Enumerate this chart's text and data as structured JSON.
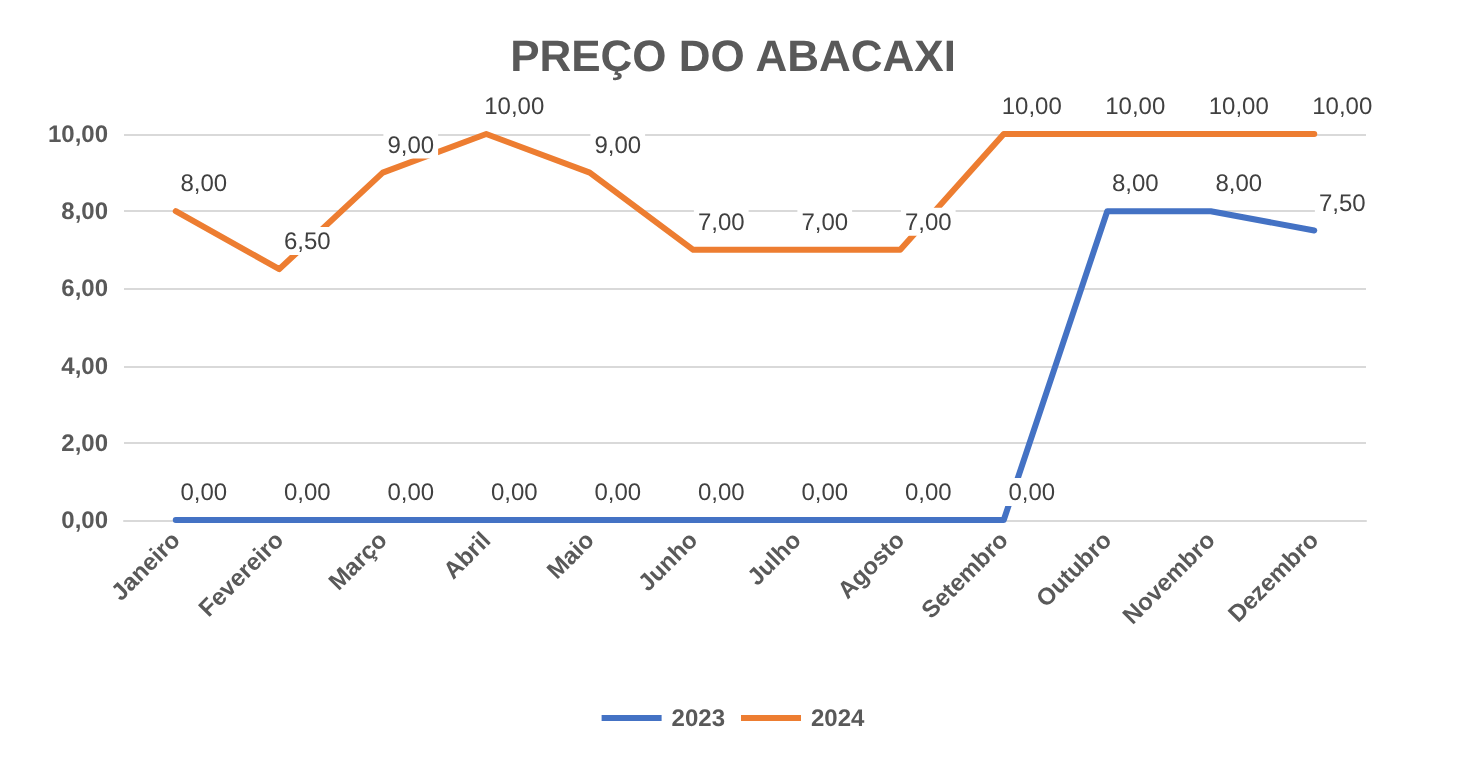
{
  "chart_data": {
    "type": "line",
    "title": "PREÇO DO ABACAXI",
    "categories": [
      "Janeiro",
      "Fevereiro",
      "Março",
      "Abril",
      "Maio",
      "Junho",
      "Julho",
      "Agosto",
      "Setembro",
      "Outubro",
      "Novembro",
      "Dezembro"
    ],
    "series": [
      {
        "name": "2023",
        "color": "#4472c4",
        "values": [
          0,
          0,
          0,
          0,
          0,
          0,
          0,
          0,
          0,
          8,
          8,
          7.5
        ],
        "value_labels": [
          "0,00",
          "0,00",
          "0,00",
          "0,00",
          "0,00",
          "0,00",
          "0,00",
          "0,00",
          "0,00",
          "8,00",
          "8,00",
          "7,50"
        ]
      },
      {
        "name": "2024",
        "color": "#ed7d31",
        "values": [
          8,
          6.5,
          9,
          10,
          9,
          7,
          7,
          7,
          10,
          10,
          10,
          10
        ],
        "value_labels": [
          "8,00",
          "6,50",
          "9,00",
          "10,00",
          "9,00",
          "7,00",
          "7,00",
          "7,00",
          "10,00",
          "10,00",
          "10,00",
          "10,00"
        ]
      }
    ],
    "ylim": [
      0,
      10
    ],
    "yticks": [
      {
        "value": 0,
        "label": "0,00"
      },
      {
        "value": 2,
        "label": "2,00"
      },
      {
        "value": 4,
        "label": "4,00"
      },
      {
        "value": 6,
        "label": "6,00"
      },
      {
        "value": 8,
        "label": "8,00"
      },
      {
        "value": 10,
        "label": "10,00"
      }
    ],
    "grid": "y",
    "legend": "bottom",
    "marker": "none",
    "line_style": "solid"
  }
}
